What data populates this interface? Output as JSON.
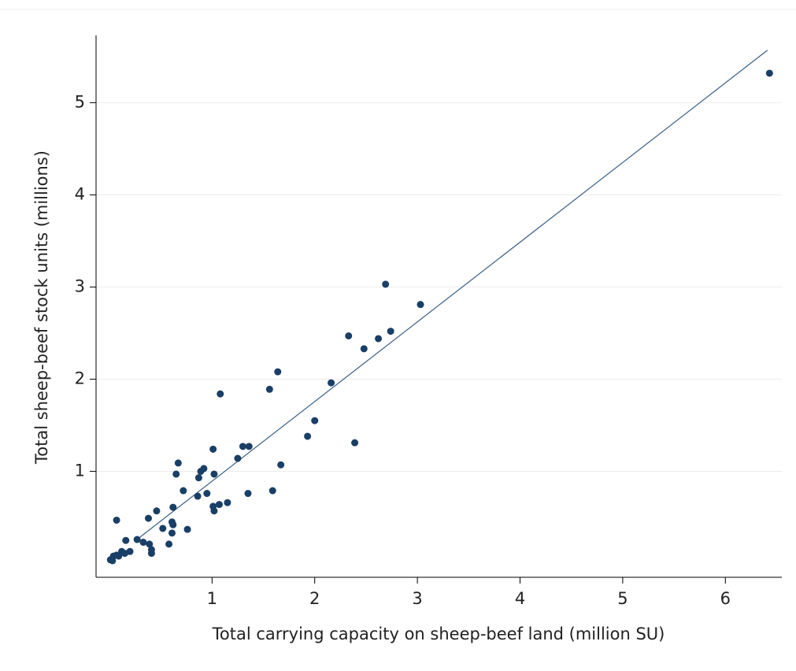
{
  "chart_data": {
    "type": "scatter",
    "x_label": "Total carrying capacity on sheep-beef land (million SU)",
    "y_label": "Total sheep-beef stock units (millions)",
    "xlim": [
      -0.13,
      6.55
    ],
    "ylim": [
      -0.15,
      5.73
    ],
    "xticks": [
      1,
      2,
      3,
      4,
      5,
      6
    ],
    "yticks": [
      1,
      2,
      3,
      4,
      5
    ],
    "grid": true,
    "color": "#1a3f66",
    "x": [
      6.43,
      2.69,
      3.03,
      2.33,
      2.74,
      2.62,
      2.48,
      1.64,
      2.16,
      1.56,
      1.08,
      2.0,
      1.93,
      2.39,
      1.3,
      1.36,
      1.01,
      1.25,
      1.67,
      0.67,
      0.92,
      0.89,
      0.65,
      1.02,
      0.87,
      0.72,
      0.95,
      0.86,
      1.59,
      1.35,
      1.15,
      1.07,
      1.01,
      1.02,
      0.62,
      0.46,
      0.38,
      0.07,
      0.61,
      0.62,
      0.52,
      0.76,
      0.61,
      0.58,
      0.16,
      0.27,
      0.33,
      0.39,
      0.41,
      0.41,
      0.2,
      0.12,
      0.07,
      0.04,
      0.01,
      0.03,
      0.09,
      0.15
    ],
    "values": [
      5.32,
      3.03,
      2.81,
      2.47,
      2.52,
      2.44,
      2.33,
      2.08,
      1.96,
      1.89,
      1.84,
      1.55,
      1.38,
      1.31,
      1.27,
      1.27,
      1.24,
      1.14,
      1.07,
      1.09,
      1.03,
      1.0,
      0.97,
      0.97,
      0.93,
      0.79,
      0.76,
      0.73,
      0.79,
      0.76,
      0.66,
      0.64,
      0.62,
      0.57,
      0.61,
      0.57,
      0.49,
      0.47,
      0.45,
      0.42,
      0.38,
      0.37,
      0.33,
      0.21,
      0.25,
      0.26,
      0.23,
      0.21,
      0.15,
      0.11,
      0.13,
      0.13,
      0.09,
      0.08,
      0.04,
      0.03,
      0.08,
      0.11
    ],
    "fit_line": {
      "x": [
        0.28,
        6.41
      ],
      "values": [
        0.27,
        5.57
      ],
      "color": "#3b5f82"
    }
  }
}
